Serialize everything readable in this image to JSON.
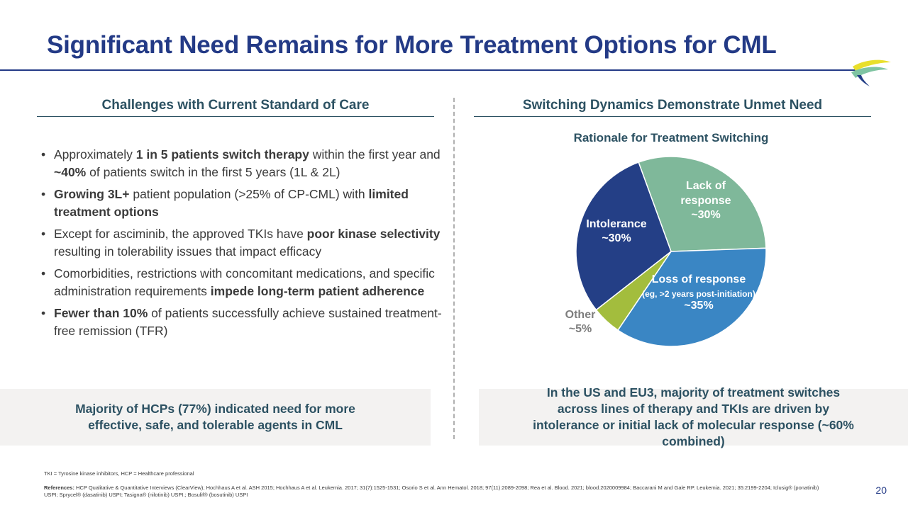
{
  "header": {
    "title": "Significant Need Remains for More Treatment Options for CML"
  },
  "left": {
    "heading": "Challenges with Current Standard of Care",
    "bullets": [
      [
        {
          "t": "Approximately "
        },
        {
          "t": "1 in 5 patients switch therapy",
          "b": true
        },
        {
          "t": " within the first year and "
        },
        {
          "t": "~40%",
          "b": true
        },
        {
          "t": " of patients switch in the first 5 years (1L & 2L)"
        }
      ],
      [
        {
          "t": "Growing 3L+",
          "b": true
        },
        {
          "t": " patient population (>25% of CP-CML) with "
        },
        {
          "t": "limited treatment options",
          "b": true
        }
      ],
      [
        {
          "t": "Except for asciminib, the approved TKIs have "
        },
        {
          "t": "poor kinase selectivity",
          "b": true
        },
        {
          "t": " resulting in tolerability issues that impact efficacy"
        }
      ],
      [
        {
          "t": "Comorbidities, restrictions with concomitant medications, and specific administration requirements "
        },
        {
          "t": "impede long-term patient adherence",
          "b": true
        }
      ],
      [
        {
          "t": "Fewer than 10%",
          "b": true
        },
        {
          "t": " of patients successfully achieve sustained treatment-free remission (TFR)"
        }
      ]
    ],
    "callout": "Majority of HCPs (77%) indicated need for more effective, safe, and tolerable agents in CML"
  },
  "right": {
    "heading": "Switching Dynamics Demonstrate Unmet Need",
    "callout": "In the US and EU3, majority of treatment switches across lines of therapy and TKIs are driven by intolerance or initial lack of molecular response (~60% combined)"
  },
  "chart_data": {
    "type": "pie",
    "title": "Rationale for Treatment Switching",
    "slices": [
      {
        "label": "Lack of response",
        "value_label": "~30%",
        "value": 30,
        "color": "#7fb89a"
      },
      {
        "label": "Loss of response",
        "sublabel": "(eg, >2 years post-initiation)",
        "value_label": "~35%",
        "value": 35,
        "color": "#3a86c4"
      },
      {
        "label": "Other",
        "value_label": "~5%",
        "value": 5,
        "color": "#a3bd3d"
      },
      {
        "label": "Intolerance",
        "value_label": "~30%",
        "value": 30,
        "color": "#243f86"
      }
    ]
  },
  "footer": {
    "abbrev": "TKI = Tyrosine kinase inhibitors, HCP = Healthcare professional",
    "refs_label": "References:",
    "refs": "HCP Qualitative & Quantitative Interviews (ClearView); Hochhaus A et al. ASH 2015; Hochhaus A et al. Leukemia. 2017; 31(7):1525-1531; Osorio S et al. Ann Hematol. 2018; 97(11):2089-2098; Rea et al. Blood. 2021; blood.2020009984; Baccarani M and Gale RP. Leukemia. 2021; 35:2199-2204; Iclusig® (ponatinib) USPI; Sprycel® (dasatinib) USPI; Tasigna® (nilotinib) USPI.; Bosulif® (bosutinib) USPI",
    "page": "20"
  },
  "colors": {
    "title": "#233a86",
    "accent": "#2c5162",
    "callout_bg": "#f3f2f1"
  },
  "icons": {
    "logo": "brand-logo-icon"
  }
}
